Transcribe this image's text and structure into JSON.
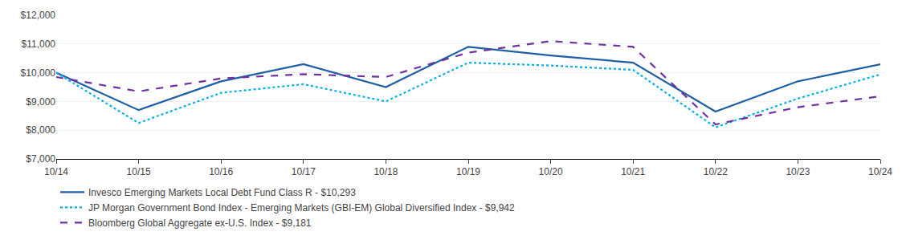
{
  "chart_data": {
    "type": "line",
    "categories": [
      "10/14",
      "10/15",
      "10/16",
      "10/17",
      "10/18",
      "10/19",
      "10/20",
      "10/21",
      "10/22",
      "10/23",
      "10/24"
    ],
    "series": [
      {
        "name": "Invesco Emerging Markets Local Debt Fund Class R - $10,293",
        "color": "#1f5fa6",
        "line_style": "solid",
        "values": [
          10000,
          8700,
          9700,
          10300,
          9500,
          10900,
          10600,
          10350,
          8650,
          9700,
          10293
        ]
      },
      {
        "name": "JP Morgan Government Bond Index - Emerging Markets (GBI-EM) Global Diversified Index - $9,942",
        "color": "#00b0f0",
        "line_style": "dotted",
        "values": [
          10000,
          8250,
          9300,
          9600,
          9000,
          10350,
          10250,
          10100,
          8100,
          9100,
          9942
        ]
      },
      {
        "name": "Bloomberg Global Aggregate ex-U.S. Index - $9,181",
        "color": "#7030a0",
        "line_style": "dashed",
        "values": [
          9850,
          9350,
          9800,
          9950,
          9850,
          10700,
          11100,
          10900,
          8200,
          8800,
          9181
        ]
      }
    ],
    "ylim": [
      7000,
      12000
    ],
    "yticks": [
      {
        "value": 7000,
        "label": "$7,000"
      },
      {
        "value": 8000,
        "label": "$8,000"
      },
      {
        "value": 9000,
        "label": "$9,000"
      },
      {
        "value": 10000,
        "label": "$10,000"
      },
      {
        "value": 11000,
        "label": "$11,000"
      },
      {
        "value": 12000,
        "label": "$12,000"
      }
    ],
    "grid": true,
    "legend": "bottom"
  }
}
